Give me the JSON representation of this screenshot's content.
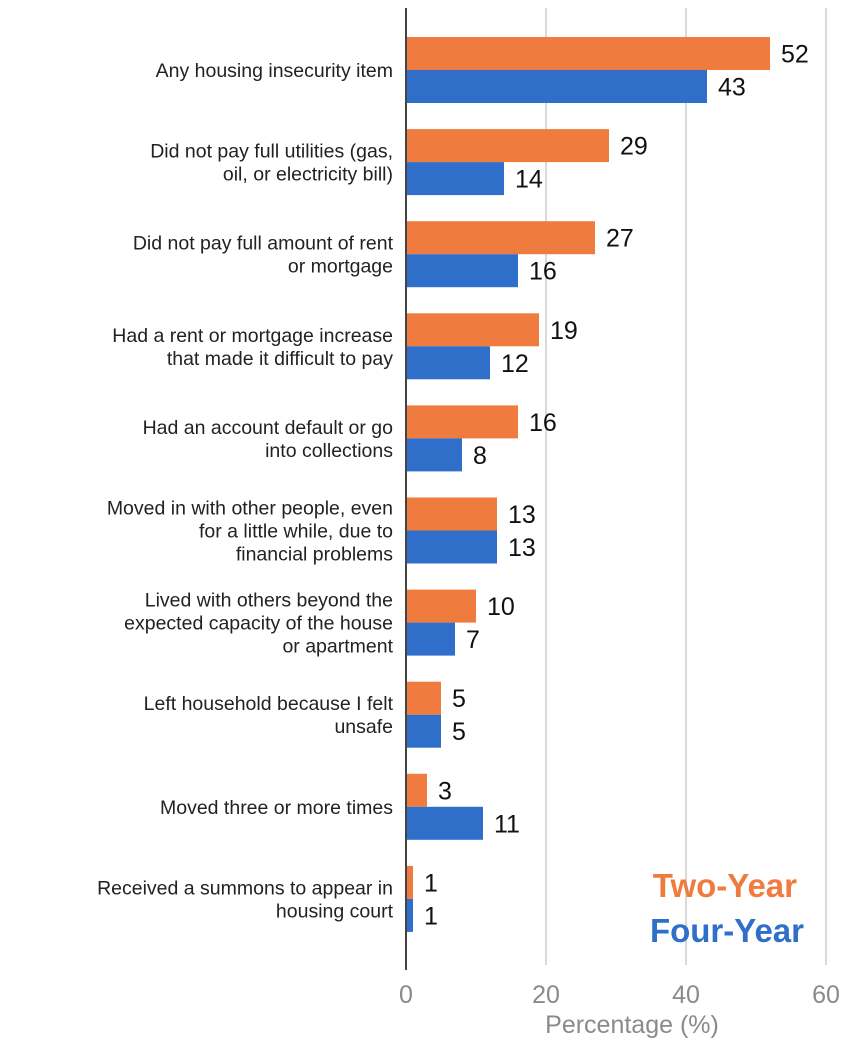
{
  "chart_data": {
    "type": "bar",
    "orientation": "horizontal",
    "categories": [
      [
        "Any housing insecurity item"
      ],
      [
        "Did not pay full utilities (gas,",
        "oil, or electricity bill)"
      ],
      [
        "Did not pay full amount of rent",
        "or mortgage"
      ],
      [
        "Had a rent or mortgage increase",
        "that made it difficult to pay"
      ],
      [
        "Had an account default or go",
        "into collections"
      ],
      [
        "Moved in with other people, even",
        "for a little while, due to",
        "financial problems"
      ],
      [
        "Lived with others beyond the",
        "expected capacity of the house",
        "or apartment"
      ],
      [
        "Left household because I felt",
        "unsafe"
      ],
      [
        "Moved three or more times"
      ],
      [
        "Received a summons to appear in",
        "housing court"
      ]
    ],
    "series": [
      {
        "name": "Two-Year",
        "color": "#f07b3f",
        "values": [
          52,
          29,
          27,
          19,
          16,
          13,
          10,
          5,
          3,
          1
        ]
      },
      {
        "name": "Four-Year",
        "color": "#2f6fc9",
        "values": [
          43,
          14,
          16,
          12,
          8,
          13,
          7,
          5,
          11,
          1
        ]
      }
    ],
    "xlabel": "Percentage (%)",
    "xlim": [
      0,
      60
    ],
    "xticks": [
      "0",
      "20",
      "40",
      "60"
    ],
    "grid": true,
    "legend_position": "bottom-right"
  }
}
